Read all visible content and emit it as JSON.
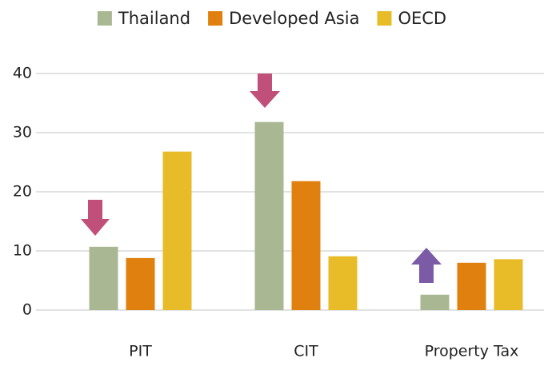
{
  "chart_data": {
    "type": "bar",
    "categories": [
      "PIT",
      "CIT",
      "Property Tax"
    ],
    "series": [
      {
        "name": "Thailand",
        "color": "#a9b892",
        "values": [
          10.7,
          31.8,
          2.6
        ]
      },
      {
        "name": "Developed Asia",
        "color": "#e0800f",
        "values": [
          8.8,
          21.8,
          8.0
        ]
      },
      {
        "name": "OECD",
        "color": "#e8bb28",
        "values": [
          26.8,
          9.1,
          8.6
        ]
      }
    ],
    "ylim": [
      0,
      40
    ],
    "yticks": [
      0,
      10,
      20,
      30,
      40
    ],
    "grid": true,
    "legend": "top"
  }
}
